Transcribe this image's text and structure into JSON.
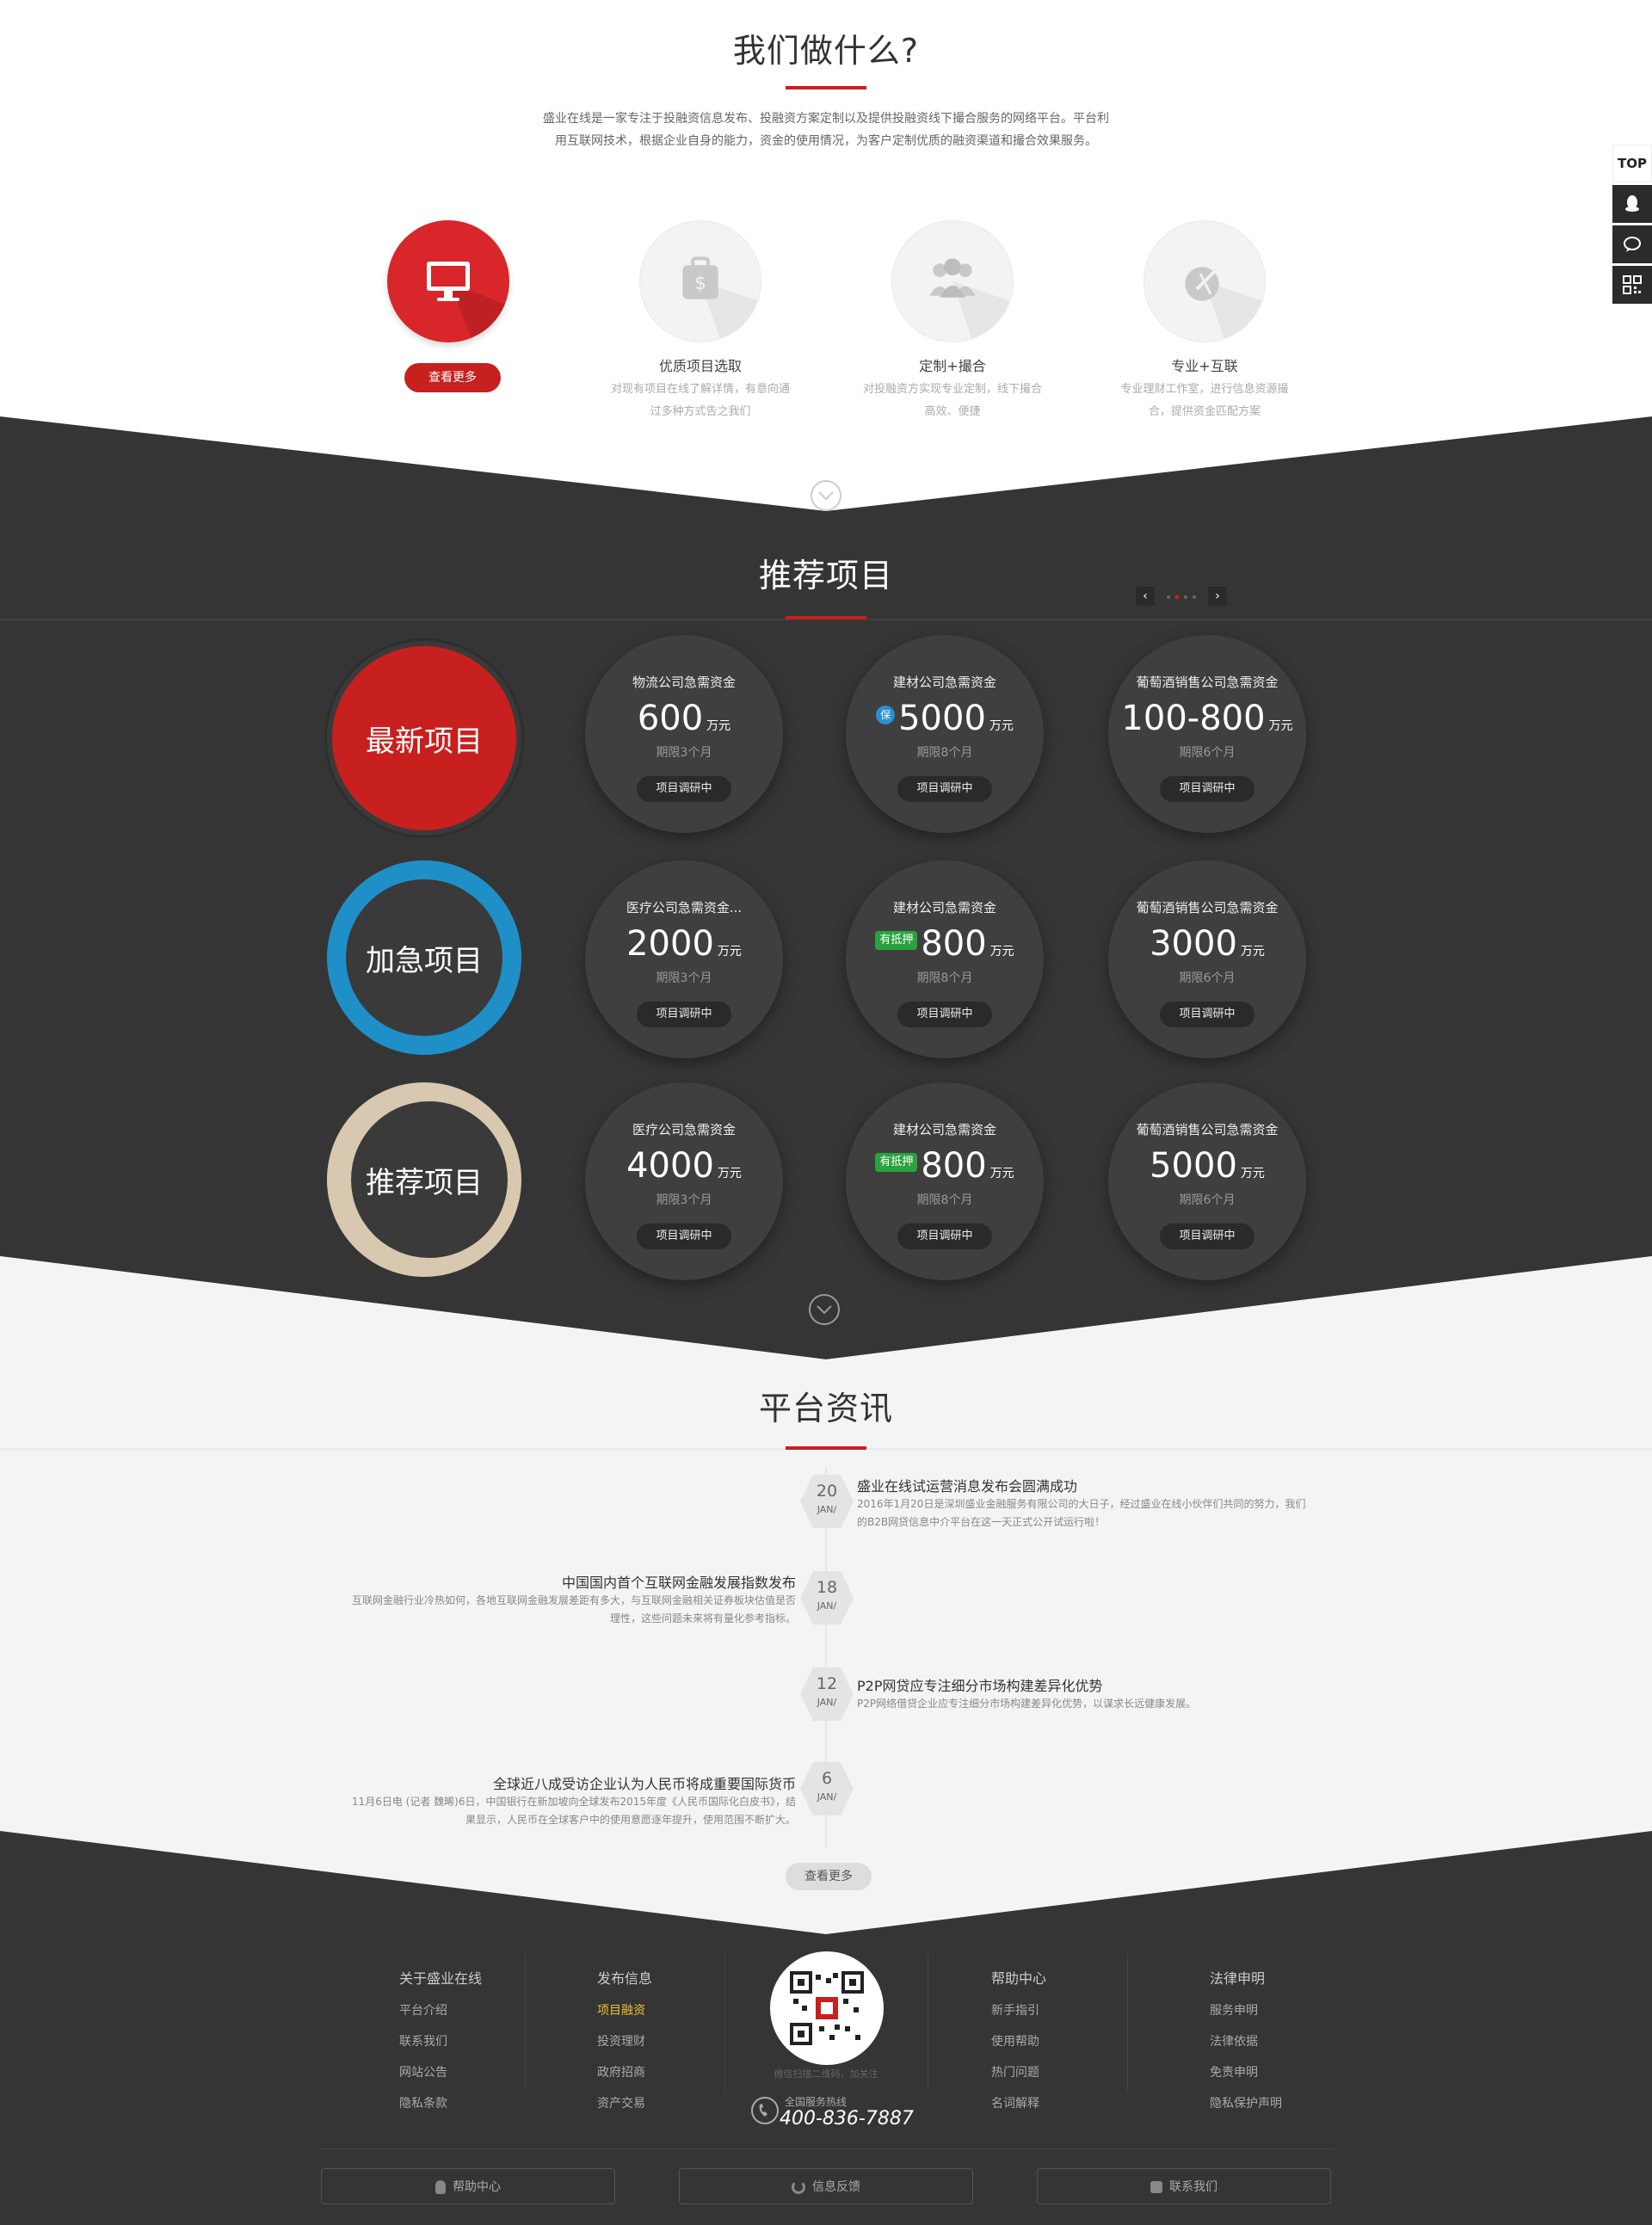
{
  "what": {
    "title": "我们做什么?",
    "intro": "盛业在线是一家专注于投融资信息发布、投融资方案定制以及提供投融资线下撮合服务的网络平台。平台利用互联网技术，根据企业自身的能力，资金的使用情况，为客户定制优质的融资渠道和撮合效果服务。",
    "more_button": "查看更多",
    "services": [
      {
        "icon": "monitor-icon",
        "title": "",
        "desc": ""
      },
      {
        "icon": "money-bag-icon",
        "title": "优质项目选取",
        "desc": "对现有项目在线了解详情，有意向通过多种方式告之我们"
      },
      {
        "icon": "people-icon",
        "title": "定制+撮合",
        "desc": "对投融资方实现专业定制，线下撮合高效、便捷"
      },
      {
        "icon": "pen-icon",
        "title": "专业+互联",
        "desc": "专业理财工作室，进行信息资源撮合，提供资金匹配方案"
      }
    ]
  },
  "sidebar": {
    "top_label": "TOP",
    "items": [
      "qq-icon",
      "chat-icon",
      "qrcode-icon"
    ]
  },
  "projects": {
    "title": "推荐项目",
    "prev": "‹",
    "next": "›",
    "categories": [
      "最新项目",
      "加急项目",
      "推荐项目"
    ],
    "rows": [
      [
        {
          "title": "物流公司急需资金",
          "amount": "600",
          "unit": "万元",
          "term": "期限3个月",
          "status": "项目调研中",
          "tag": ""
        },
        {
          "title": "建材公司急需资金",
          "amount": "5000",
          "unit": "万元",
          "term": "期限8个月",
          "status": "项目调研中",
          "tag": "保"
        },
        {
          "title": "葡萄酒销售公司急需资金",
          "amount": "100-800",
          "unit": "万元",
          "term": "期限6个月",
          "status": "项目调研中",
          "tag": ""
        }
      ],
      [
        {
          "title": "医疗公司急需资金...",
          "amount": "2000",
          "unit": "万元",
          "term": "期限3个月",
          "status": "项目调研中",
          "tag": ""
        },
        {
          "title": "建材公司急需资金",
          "amount": "800",
          "unit": "万元",
          "term": "期限8个月",
          "status": "项目调研中",
          "tag": "有抵押"
        },
        {
          "title": "葡萄酒销售公司急需资金",
          "amount": "3000",
          "unit": "万元",
          "term": "期限6个月",
          "status": "项目调研中",
          "tag": ""
        }
      ],
      [
        {
          "title": "医疗公司急需资金",
          "amount": "4000",
          "unit": "万元",
          "term": "期限3个月",
          "status": "项目调研中",
          "tag": ""
        },
        {
          "title": "建材公司急需资金",
          "amount": "800",
          "unit": "万元",
          "term": "期限8个月",
          "status": "项目调研中",
          "tag": "有抵押"
        },
        {
          "title": "葡萄酒销售公司急需资金",
          "amount": "5000",
          "unit": "万元",
          "term": "期限6个月",
          "status": "项目调研中",
          "tag": ""
        }
      ]
    ]
  },
  "news": {
    "title": "平台资讯",
    "more_button": "查看更多",
    "items": [
      {
        "day": "20",
        "month": "JAN/",
        "title": "盛业在线试运营消息发布会圆满成功",
        "desc1": "2016年1月20日是深圳盛业金融服务有限公司的大日子，经过盛业在线小伙伴们共同的努力，我们",
        "desc2": "的B2B网贷信息中介平台在这一天正式公开试运行啦！"
      },
      {
        "day": "18",
        "month": "JAN/",
        "title": "中国国内首个互联网金融发展指数发布",
        "desc1": "互联网金融行业冷热如何，各地互联网金融发展差距有多大，与互联网金融相关证券板块估值是否",
        "desc2": "理性，这些问题未来将有量化参考指标。"
      },
      {
        "day": "12",
        "month": "JAN/",
        "title": "P2P网贷应专注细分市场构建差异化优势",
        "desc1": "P2P网络借贷企业应专注细分市场构建差异化优势，以谋求长远健康发展。",
        "desc2": ""
      },
      {
        "day": "6",
        "month": "JAN/",
        "title": "全球近八成受访企业认为人民币将成重要国际货币",
        "desc1": "11月6日电 (记者 魏晞)6日，中国银行在新加坡向全球发布2015年度《人民币国际化白皮书》，结",
        "desc2": "果显示，人民币在全球客户中的使用意愿逐年提升，使用范围不断扩大。"
      }
    ]
  },
  "footer": {
    "col1": {
      "heading": "关于盛业在线",
      "items": [
        "平台介绍",
        "联系我们",
        "网站公告",
        "隐私条款"
      ]
    },
    "col2": {
      "heading": "发布信息",
      "items": [
        "项目融资",
        "投资理财",
        "政府招商",
        "资产交易"
      ]
    },
    "col3": {
      "heading": "帮助中心",
      "items": [
        "新手指引",
        "使用帮助",
        "热门问题",
        "名词解释"
      ]
    },
    "col4": {
      "heading": "法律申明",
      "items": [
        "服务申明",
        "法律依据",
        "免责申明",
        "隐私保护声明"
      ]
    },
    "qr_caption": "微信扫描二维码，加关注",
    "hotline_label": "全国服务热线",
    "hotline": "400-836-7887",
    "buttons": [
      "帮助中心",
      "信息反馈",
      "联系我们"
    ]
  },
  "colors": {
    "accent": "#c8201e",
    "dark": "#353535",
    "light": "#f4f4f4"
  }
}
